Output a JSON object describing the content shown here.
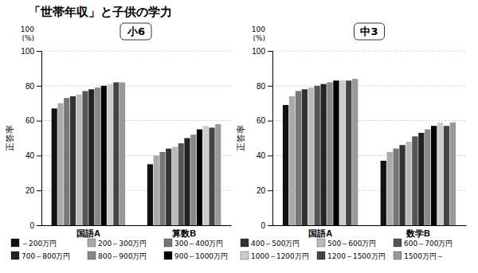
{
  "title": "「世帯年収」と子供の学力",
  "chart_data": [
    {
      "type": "bar",
      "subtitle": "小6",
      "ylabel": "正答率",
      "annotations": [
        "100",
        "(%)"
      ],
      "categories": [
        "国語A",
        "算数B"
      ],
      "series": [
        {
          "name": "～200万円",
          "color": "#111111",
          "values": [
            67,
            35
          ]
        },
        {
          "name": "200～300万円",
          "color": "#aaaaaa",
          "values": [
            70,
            40
          ]
        },
        {
          "name": "300～400万円",
          "color": "#777777",
          "values": [
            73,
            42
          ]
        },
        {
          "name": "400～500万円",
          "color": "#333333",
          "values": [
            74,
            44
          ]
        },
        {
          "name": "500～600万円",
          "color": "#bbbbbb",
          "values": [
            75,
            45
          ]
        },
        {
          "name": "600～700万円",
          "color": "#555555",
          "values": [
            77,
            47
          ]
        },
        {
          "name": "700～800万円",
          "color": "#222222",
          "values": [
            78,
            50
          ]
        },
        {
          "name": "800～900万円",
          "color": "#888888",
          "values": [
            79,
            52
          ]
        },
        {
          "name": "900～1000万円",
          "color": "#000000",
          "values": [
            80,
            55
          ]
        },
        {
          "name": "1000～1200万円",
          "color": "#cccccc",
          "values": [
            81,
            57
          ]
        },
        {
          "name": "1200～1500万円",
          "color": "#444444",
          "values": [
            82,
            56
          ]
        },
        {
          "name": "1500万円～",
          "color": "#999999",
          "values": [
            82,
            58
          ]
        }
      ],
      "ylim": [
        0,
        100
      ],
      "yticks": [
        0,
        20,
        40,
        60,
        80,
        100
      ],
      "grid": true,
      "legend": "lower left"
    },
    {
      "type": "bar",
      "subtitle": "中3",
      "ylabel": "正答率",
      "annotations": [
        "100",
        "(%)"
      ],
      "categories": [
        "国語A",
        "数学B"
      ],
      "series": [
        {
          "name": "～200万円",
          "color": "#111111",
          "values": [
            69,
            37
          ]
        },
        {
          "name": "200～300万円",
          "color": "#aaaaaa",
          "values": [
            74,
            42
          ]
        },
        {
          "name": "300～400万円",
          "color": "#777777",
          "values": [
            77,
            44
          ]
        },
        {
          "name": "400～500万円",
          "color": "#333333",
          "values": [
            78,
            46
          ]
        },
        {
          "name": "500～600万円",
          "color": "#bbbbbb",
          "values": [
            79,
            48
          ]
        },
        {
          "name": "600～700万円",
          "color": "#555555",
          "values": [
            80,
            51
          ]
        },
        {
          "name": "700～800万円",
          "color": "#222222",
          "values": [
            81,
            53
          ]
        },
        {
          "name": "800～900万円",
          "color": "#888888",
          "values": [
            82,
            55
          ]
        },
        {
          "name": "900～1000万円",
          "color": "#000000",
          "values": [
            83,
            57
          ]
        },
        {
          "name": "1000～1200万円",
          "color": "#cccccc",
          "values": [
            83,
            59
          ]
        },
        {
          "name": "1200～1500万円",
          "color": "#444444",
          "values": [
            83,
            57
          ]
        },
        {
          "name": "1500万円～",
          "color": "#999999",
          "values": [
            84,
            59
          ]
        }
      ],
      "ylim": [
        0,
        100
      ],
      "yticks": [
        0,
        20,
        40,
        60,
        80,
        100
      ],
      "grid": true
    }
  ]
}
